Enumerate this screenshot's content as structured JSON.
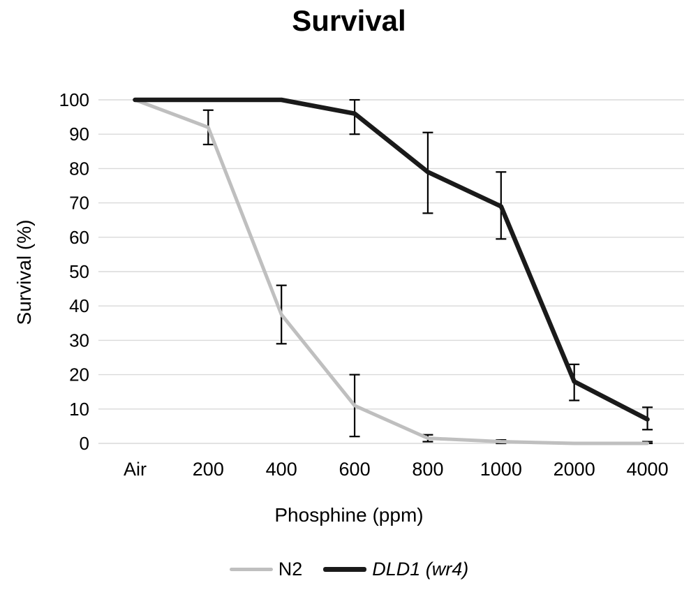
{
  "chart_data": {
    "type": "line",
    "title": "Survival",
    "xlabel": "Phosphine (ppm)",
    "ylabel": "Survival (%)",
    "categories": [
      "Air",
      "200",
      "400",
      "600",
      "800",
      "1000",
      "2000",
      "4000"
    ],
    "ylim": [
      0,
      100
    ],
    "ytick_labels": [
      "0",
      "10",
      "20",
      "30",
      "40",
      "50",
      "60",
      "70",
      "80",
      "90",
      "100"
    ],
    "grid": "horizontal",
    "gridline_color": "#d9d9d9",
    "error_bar_color": "#000000",
    "text_color": "#000000",
    "legend_position": "bottom",
    "series": [
      {
        "name": "N2",
        "color": "#bfbfbf",
        "line_width": 5,
        "values": [
          100,
          92,
          37.5,
          11,
          1.5,
          0.5,
          0,
          0
        ],
        "error_bars": [
          null,
          {
            "lo": 87,
            "hi": 97
          },
          {
            "lo": 29,
            "hi": 46
          },
          {
            "lo": 2,
            "hi": 20
          },
          {
            "lo": 0.5,
            "hi": 2.5
          },
          {
            "lo": 0,
            "hi": 1
          },
          null,
          {
            "lo": 0,
            "hi": 0.5
          }
        ]
      },
      {
        "name": "DLD1 (wr4)",
        "color": "#1a1a1a",
        "line_width": 6.5,
        "values": [
          100,
          100,
          100,
          96,
          79,
          69,
          18,
          7
        ],
        "error_bars": [
          null,
          null,
          null,
          {
            "lo": 90,
            "hi": 100
          },
          {
            "lo": 67,
            "hi": 90.5
          },
          {
            "lo": 59.5,
            "hi": 79
          },
          {
            "lo": 12.5,
            "hi": 23
          },
          {
            "lo": 4,
            "hi": 10.5
          }
        ]
      }
    ]
  }
}
